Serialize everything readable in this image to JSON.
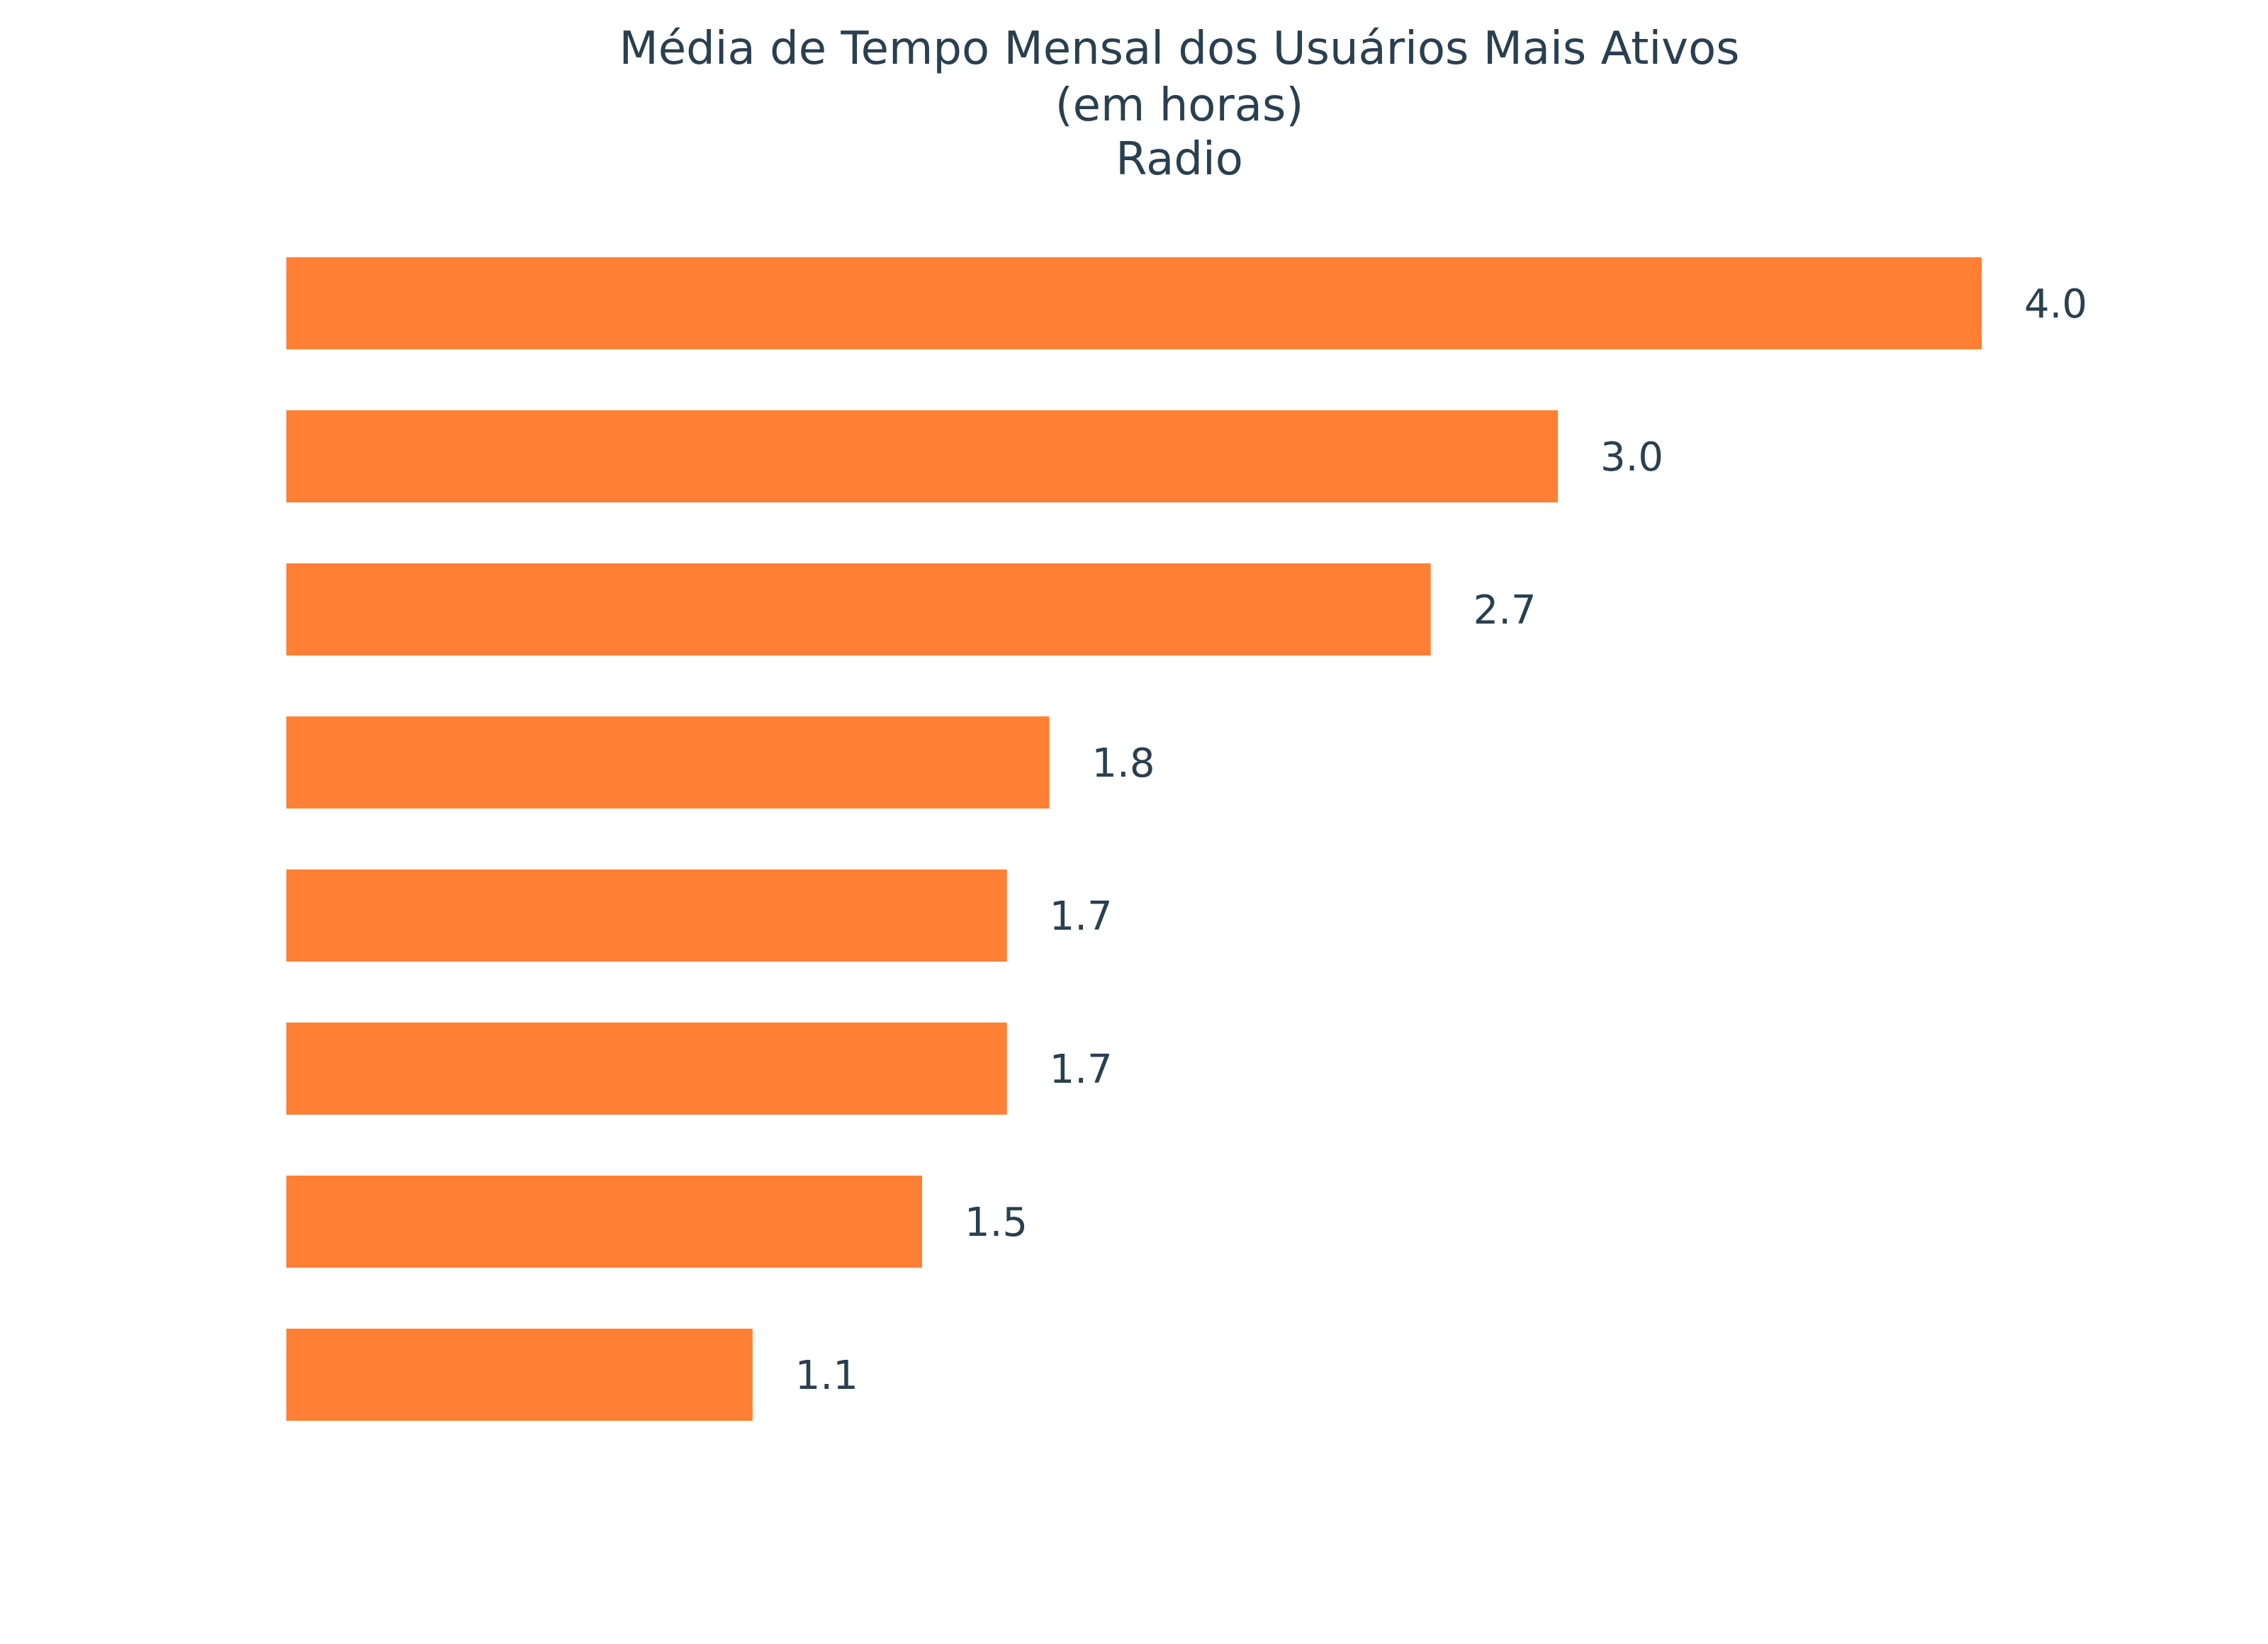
{
  "chart_data": {
    "type": "bar",
    "orientation": "horizontal",
    "title_lines": [
      "Média de Tempo Mensal dos Usuários Mais Ativos",
      "(em horas)",
      "Radio"
    ],
    "xlabel": "",
    "ylabel": "",
    "xlim": [
      0,
      4.0
    ],
    "grid": false,
    "legend": "none",
    "series": [
      {
        "values": [
          4.0,
          3.0,
          2.7,
          1.8,
          1.7,
          1.7,
          1.5,
          1.1
        ],
        "labels": [
          "4.0",
          "3.0",
          "2.7",
          "1.8",
          "1.7",
          "1.7",
          "1.5",
          "1.1"
        ]
      }
    ],
    "colors": {
      "bar": "#ff7f35",
      "text": "#2a3f4f",
      "background": "#ffffff"
    }
  }
}
